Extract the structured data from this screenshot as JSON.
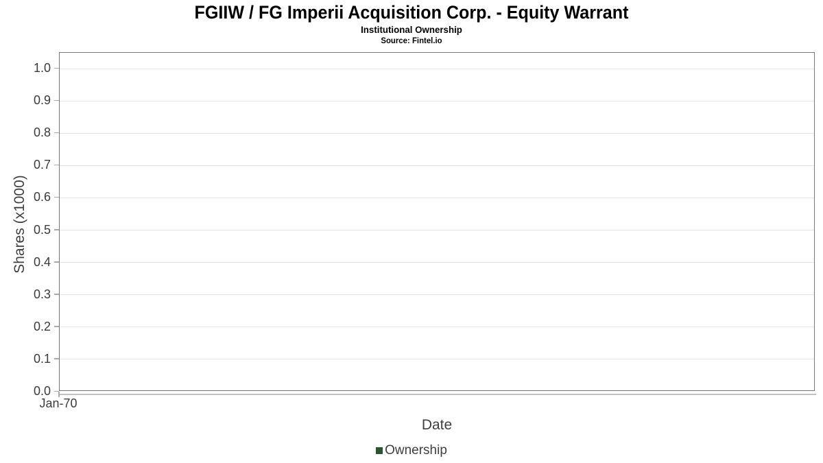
{
  "chart_data": {
    "type": "bar",
    "title": "FGIIW / FG Imperii Acquisition Corp. - Equity Warrant",
    "subtitle": "Institutional Ownership",
    "source": "Source: Fintel.io",
    "xlabel": "Date",
    "ylabel": "Shares (x1000)",
    "x_tick_labels": [
      "Jan-70"
    ],
    "y_tick_labels": [
      "0.0",
      "0.1",
      "0.2",
      "0.3",
      "0.4",
      "0.5",
      "0.6",
      "0.7",
      "0.8",
      "0.9",
      "1.0"
    ],
    "ylim": [
      0,
      1.05
    ],
    "grid": "horizontal",
    "legend_position": "bottom",
    "series": [
      {
        "name": "Ownership",
        "color": "#2a5530",
        "x": [],
        "values": []
      }
    ]
  }
}
